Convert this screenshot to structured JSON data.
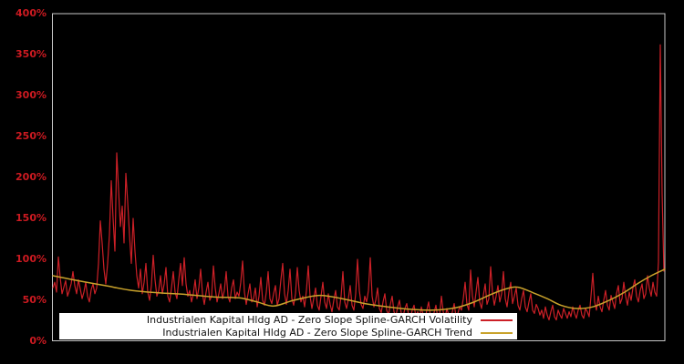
{
  "chart_data": {
    "type": "line",
    "title": "",
    "xlabel": "",
    "ylabel": "",
    "ylim": [
      0,
      400
    ],
    "grid": false,
    "background_color": "#000000",
    "frame_color": "#c8c8c8",
    "axis_label_color": "#cd1a21",
    "legend_position": "bottom-inside",
    "y_ticks": [
      {
        "label": "0%",
        "value": 0
      },
      {
        "label": "50%",
        "value": 50
      },
      {
        "label": "100%",
        "value": 100
      },
      {
        "label": "150%",
        "value": 150
      },
      {
        "label": "200%",
        "value": 200
      },
      {
        "label": "250%",
        "value": 250
      },
      {
        "label": "300%",
        "value": 300
      },
      {
        "label": "350%",
        "value": 350
      },
      {
        "label": "400%",
        "value": 400
      }
    ],
    "x_ticks": [],
    "series": [
      {
        "name": "Industrialen Kapital Hldg AD - Zero Slope Spline-GARCH Volatility",
        "color": "#cc2027",
        "style": "noisy-line",
        "values_pct": [
          65,
          72,
          60,
          103,
          78,
          58,
          66,
          74,
          55,
          62,
          70,
          85,
          68,
          58,
          75,
          64,
          52,
          60,
          72,
          55,
          48,
          63,
          70,
          58,
          65,
          95,
          147,
          120,
          88,
          70,
          95,
          130,
          196,
          150,
          110,
          230,
          185,
          140,
          165,
          120,
          205,
          170,
          130,
          95,
          150,
          110,
          80,
          65,
          88,
          58,
          72,
          95,
          60,
          50,
          68,
          105,
          75,
          55,
          62,
          80,
          58,
          70,
          90,
          55,
          48,
          65,
          85,
          60,
          52,
          75,
          95,
          68,
          102,
          70,
          55,
          62,
          48,
          58,
          75,
          52,
          65,
          88,
          58,
          45,
          60,
          72,
          50,
          55,
          92,
          65,
          48,
          58,
          70,
          52,
          62,
          85,
          55,
          48,
          65,
          75,
          52,
          60,
          55,
          72,
          98,
          60,
          45,
          58,
          70,
          48,
          52,
          65,
          42,
          55,
          78,
          50,
          44,
          60,
          85,
          52,
          46,
          58,
          68,
          44,
          52,
          75,
          95,
          58,
          45,
          62,
          88,
          52,
          44,
          58,
          90,
          62,
          48,
          55,
          42,
          62,
          92,
          55,
          40,
          52,
          65,
          44,
          38,
          55,
          72,
          48,
          40,
          58,
          45,
          36,
          50,
          62,
          42,
          38,
          55,
          85,
          48,
          40,
          52,
          68,
          44,
          38,
          58,
          100,
          62,
          45,
          40,
          55,
          48,
          62,
          102,
          55,
          42,
          50,
          65,
          40,
          35,
          48,
          58,
          38,
          32,
          45,
          55,
          36,
          30,
          42,
          50,
          34,
          30,
          40,
          46,
          32,
          28,
          38,
          44,
          30,
          36,
          28,
          42,
          32,
          26,
          38,
          48,
          30,
          26,
          35,
          44,
          28,
          32,
          55,
          36,
          28,
          40,
          32,
          26,
          36,
          46,
          30,
          34,
          42,
          38,
          52,
          72,
          45,
          38,
          87,
          55,
          42,
          60,
          78,
          48,
          40,
          56,
          70,
          45,
          52,
          91,
          60,
          44,
          55,
          68,
          48,
          58,
          85,
          52,
          42,
          60,
          72,
          46,
          55,
          65,
          44,
          38,
          52,
          62,
          42,
          36,
          48,
          58,
          38,
          34,
          45,
          40,
          32,
          38,
          28,
          42,
          32,
          26,
          36,
          44,
          30,
          26,
          38,
          32,
          28,
          40,
          34,
          28,
          36,
          30,
          42,
          34,
          28,
          38,
          44,
          32,
          28,
          40,
          36,
          30,
          55,
          83,
          48,
          38,
          55,
          42,
          36,
          50,
          62,
          44,
          38,
          56,
          48,
          40,
          58,
          68,
          46,
          52,
          72,
          55,
          44,
          60,
          50,
          65,
          75,
          55,
          48,
          62,
          70,
          52,
          58,
          80,
          65,
          55,
          72,
          60,
          55,
          97,
          362,
          180,
          85
        ]
      },
      {
        "name": "Industrialen Kapital Hldg AD - Zero Slope Spline-GARCH Trend",
        "color": "#c9a22b",
        "style": "smooth-spline",
        "points_pct": [
          [
            58,
            80
          ],
          [
            85,
            74
          ],
          [
            115,
            68
          ],
          [
            145,
            62
          ],
          [
            175,
            59
          ],
          [
            205,
            57
          ],
          [
            235,
            54
          ],
          [
            262,
            53
          ],
          [
            282,
            48
          ],
          [
            300,
            43
          ],
          [
            322,
            50
          ],
          [
            350,
            56
          ],
          [
            375,
            52
          ],
          [
            400,
            46
          ],
          [
            425,
            42
          ],
          [
            450,
            39
          ],
          [
            475,
            38
          ],
          [
            500,
            41
          ],
          [
            520,
            48
          ],
          [
            538,
            57
          ],
          [
            555,
            64
          ],
          [
            568,
            66
          ],
          [
            585,
            59
          ],
          [
            600,
            52
          ],
          [
            615,
            44
          ],
          [
            632,
            40
          ],
          [
            650,
            42
          ],
          [
            668,
            50
          ],
          [
            685,
            60
          ],
          [
            700,
            71
          ],
          [
            714,
            80
          ],
          [
            729,
            88
          ]
        ]
      }
    ]
  },
  "legend": {
    "background": "#ffffff",
    "text_color": "#111111"
  }
}
